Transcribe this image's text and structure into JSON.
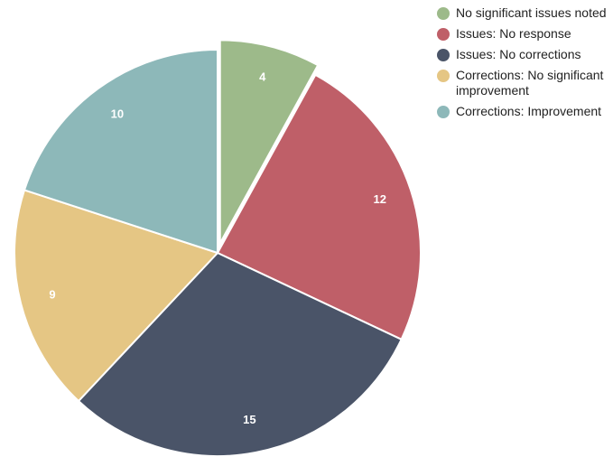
{
  "chart_data": {
    "type": "pie",
    "categories": [
      "No significant issues noted",
      "Issues: No response",
      "Issues: No corrections",
      "Corrections: No significant improvement",
      "Corrections: Improvement"
    ],
    "values": [
      4,
      12,
      15,
      9,
      10
    ],
    "colors": [
      "#9dba8a",
      "#bf5f68",
      "#4a5468",
      "#e5c684",
      "#8db8b9"
    ],
    "exploded": [
      true,
      false,
      false,
      false,
      false
    ],
    "data_labels": [
      "4",
      "12",
      "15",
      "9",
      "10"
    ],
    "legend_position": "top-right",
    "title": ""
  },
  "legend": {
    "items": [
      {
        "label": "No significant issues noted"
      },
      {
        "label": "Issues: No response"
      },
      {
        "label": "Issues: No corrections"
      },
      {
        "label": "Corrections: No significant improvement"
      },
      {
        "label": "Corrections: Improvement"
      }
    ]
  }
}
